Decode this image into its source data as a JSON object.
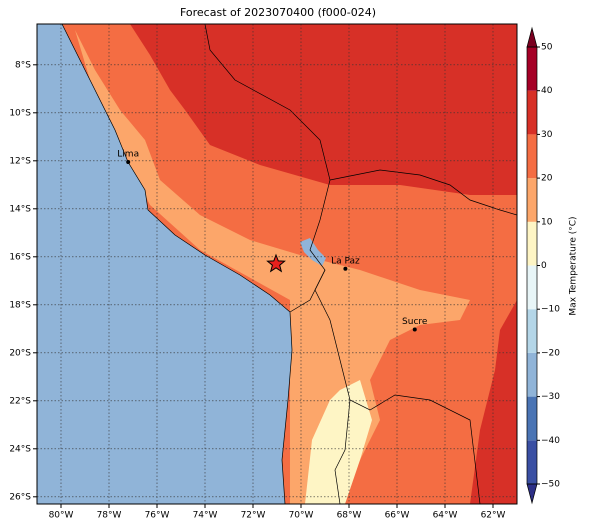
{
  "map": {
    "title": "Forecast of 2023070400 (f000-024)",
    "xlim": [
      -81,
      -61
    ],
    "ylim": [
      -26.3,
      -6.3
    ],
    "xticks": [
      {
        "value": -80,
        "label": "80°W"
      },
      {
        "value": -78,
        "label": "78°W"
      },
      {
        "value": -76,
        "label": "76°W"
      },
      {
        "value": -74,
        "label": "74°W"
      },
      {
        "value": -72,
        "label": "72°W"
      },
      {
        "value": -70,
        "label": "70°W"
      },
      {
        "value": -68,
        "label": "68°W"
      },
      {
        "value": -66,
        "label": "66°W"
      },
      {
        "value": -64,
        "label": "64°W"
      },
      {
        "value": -62,
        "label": "62°W"
      }
    ],
    "yticks": [
      {
        "value": -8,
        "label": "8°S"
      },
      {
        "value": -10,
        "label": "10°S"
      },
      {
        "value": -12,
        "label": "12°S"
      },
      {
        "value": -14,
        "label": "14°S"
      },
      {
        "value": -16,
        "label": "16°S"
      },
      {
        "value": -18,
        "label": "18°S"
      },
      {
        "value": -20,
        "label": "20°S"
      },
      {
        "value": -22,
        "label": "22°S"
      },
      {
        "value": -24,
        "label": "24°S"
      },
      {
        "value": -26,
        "label": "26°S"
      }
    ],
    "cities": [
      {
        "name": "Lima",
        "lon": -77.2,
        "lat": -12.05
      },
      {
        "name": "La Paz",
        "lon": -68.15,
        "lat": -16.5
      },
      {
        "name": "Sucre",
        "lon": -65.26,
        "lat": -19.03
      }
    ],
    "marker": {
      "lon": -71.04,
      "lat": -16.3
    },
    "colorbar": {
      "label": "Max Temperature (°C)",
      "lim": [
        -50,
        50
      ],
      "ticks": [
        {
          "value": -50,
          "label": "−50"
        },
        {
          "value": -40,
          "label": "−40"
        },
        {
          "value": -30,
          "label": "−30"
        },
        {
          "value": -20,
          "label": "−20"
        },
        {
          "value": -10,
          "label": "−10"
        },
        0,
        10,
        20,
        30,
        40,
        50
      ],
      "colors": [
        "#2c2f86",
        "#3a4fa3",
        "#4a74b4",
        "#90b4d8",
        "#b4d6e8",
        "#e8f5f7",
        "#fef5c5",
        "#fca66a",
        "#f46d43",
        "#d73027",
        "#a50026",
        "#7a0020"
      ]
    }
  }
}
